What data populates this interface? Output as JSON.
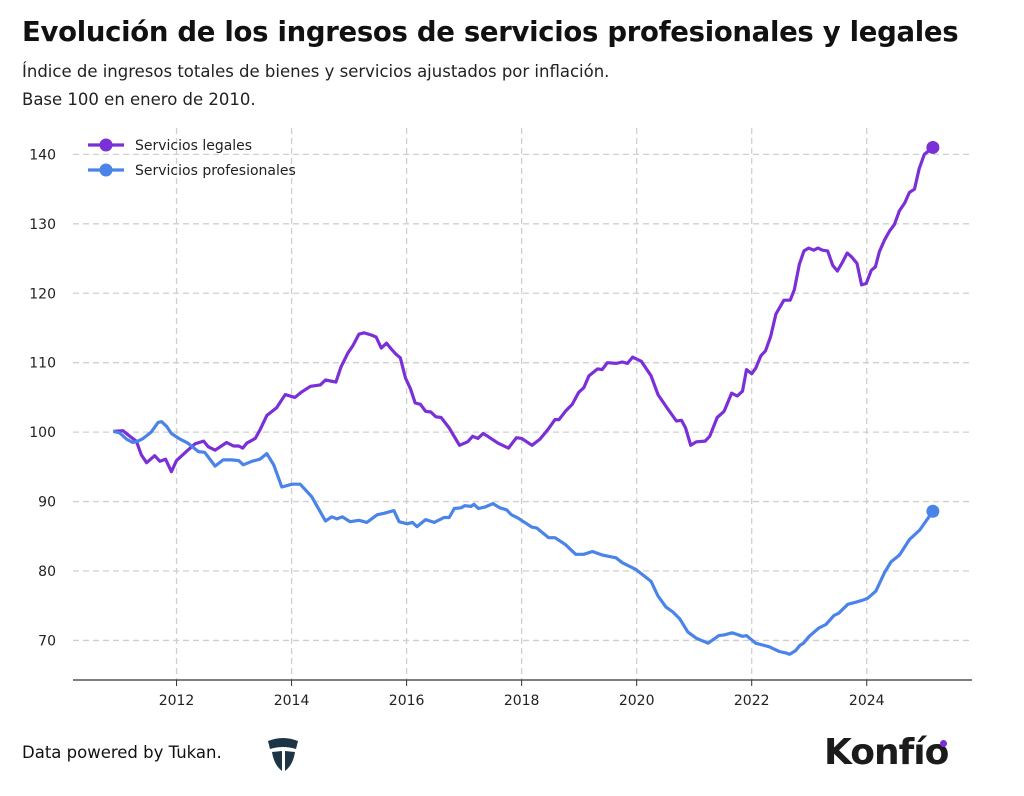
{
  "header": {
    "title": "Evolución de los ingresos de servicios profesionales y legales",
    "subtitle_line1": "Índice de ingresos totales de bienes y servicios ajustados por inflación.",
    "subtitle_line2": "Base 100 en enero de 2010."
  },
  "footer": {
    "credit": "Data powered by Tukan.",
    "tukan_logo": "Tukan",
    "brand_logo": "Konfío",
    "brand_accent": "#7b2fd6"
  },
  "chart_data": {
    "type": "line",
    "title": "Evolución de los ingresos de servicios profesionales y legales",
    "xlabel": "",
    "ylabel": "",
    "xlim": [
      2010.2,
      2025.83
    ],
    "ylim": [
      64.3,
      143.8
    ],
    "x_ticks": [
      2012,
      2014,
      2016,
      2018,
      2020,
      2022,
      2024
    ],
    "y_ticks": [
      70,
      80,
      90,
      100,
      110,
      120,
      130,
      140
    ],
    "grid": true,
    "legend": "top-left",
    "series": [
      {
        "name": "Servicios legales",
        "color": "#7b2fd6",
        "end_marker": true,
        "points": [
          [
            2010.9,
            100.1
          ],
          [
            2011.07,
            100.2
          ],
          [
            2011.19,
            99.4
          ],
          [
            2011.3,
            98.7
          ],
          [
            2011.39,
            96.7
          ],
          [
            2011.48,
            95.6
          ],
          [
            2011.62,
            96.6
          ],
          [
            2011.71,
            95.8
          ],
          [
            2011.81,
            96.1
          ],
          [
            2011.91,
            94.3
          ],
          [
            2012.0,
            95.9
          ],
          [
            2012.17,
            97.2
          ],
          [
            2012.32,
            98.3
          ],
          [
            2012.47,
            98.7
          ],
          [
            2012.55,
            97.9
          ],
          [
            2012.67,
            97.4
          ],
          [
            2012.87,
            98.5
          ],
          [
            2012.99,
            98.0
          ],
          [
            2013.08,
            98.0
          ],
          [
            2013.15,
            97.7
          ],
          [
            2013.22,
            98.4
          ],
          [
            2013.37,
            99.1
          ],
          [
            2013.45,
            100.3
          ],
          [
            2013.57,
            102.4
          ],
          [
            2013.74,
            103.5
          ],
          [
            2013.89,
            105.4
          ],
          [
            2014.06,
            105.0
          ],
          [
            2014.18,
            105.8
          ],
          [
            2014.33,
            106.6
          ],
          [
            2014.5,
            106.8
          ],
          [
            2014.59,
            107.5
          ],
          [
            2014.77,
            107.2
          ],
          [
            2014.86,
            109.4
          ],
          [
            2014.98,
            111.4
          ],
          [
            2015.07,
            112.5
          ],
          [
            2015.17,
            114.1
          ],
          [
            2015.26,
            114.3
          ],
          [
            2015.38,
            114.0
          ],
          [
            2015.47,
            113.7
          ],
          [
            2015.56,
            112.1
          ],
          [
            2015.65,
            112.8
          ],
          [
            2015.73,
            112.0
          ],
          [
            2015.82,
            111.2
          ],
          [
            2015.89,
            110.7
          ],
          [
            2015.98,
            107.8
          ],
          [
            2016.07,
            106.2
          ],
          [
            2016.15,
            104.2
          ],
          [
            2016.24,
            104.0
          ],
          [
            2016.33,
            103.0
          ],
          [
            2016.42,
            102.9
          ],
          [
            2016.51,
            102.2
          ],
          [
            2016.6,
            102.1
          ],
          [
            2016.74,
            100.6
          ],
          [
            2016.92,
            98.1
          ],
          [
            2017.06,
            98.6
          ],
          [
            2017.15,
            99.4
          ],
          [
            2017.24,
            99.1
          ],
          [
            2017.33,
            99.8
          ],
          [
            2017.41,
            99.4
          ],
          [
            2017.59,
            98.4
          ],
          [
            2017.77,
            97.7
          ],
          [
            2017.91,
            99.2
          ],
          [
            2018.0,
            99.1
          ],
          [
            2018.18,
            98.1
          ],
          [
            2018.32,
            99.0
          ],
          [
            2018.46,
            100.4
          ],
          [
            2018.58,
            101.8
          ],
          [
            2018.65,
            101.8
          ],
          [
            2018.76,
            103.0
          ],
          [
            2018.88,
            104.0
          ],
          [
            2018.99,
            105.7
          ],
          [
            2019.08,
            106.4
          ],
          [
            2019.17,
            108.1
          ],
          [
            2019.32,
            109.1
          ],
          [
            2019.4,
            109.0
          ],
          [
            2019.49,
            110.0
          ],
          [
            2019.64,
            109.9
          ],
          [
            2019.75,
            110.1
          ],
          [
            2019.84,
            109.9
          ],
          [
            2019.93,
            110.8
          ],
          [
            2020.08,
            110.2
          ],
          [
            2020.25,
            108.1
          ],
          [
            2020.37,
            105.4
          ],
          [
            2020.51,
            103.7
          ],
          [
            2020.69,
            101.6
          ],
          [
            2020.78,
            101.7
          ],
          [
            2020.85,
            100.6
          ],
          [
            2020.94,
            98.1
          ],
          [
            2021.04,
            98.6
          ],
          [
            2021.19,
            98.7
          ],
          [
            2021.27,
            99.4
          ],
          [
            2021.4,
            102.1
          ],
          [
            2021.52,
            103.0
          ],
          [
            2021.65,
            105.6
          ],
          [
            2021.75,
            105.2
          ],
          [
            2021.84,
            105.9
          ],
          [
            2021.91,
            109.0
          ],
          [
            2022.0,
            108.4
          ],
          [
            2022.07,
            109.2
          ],
          [
            2022.16,
            111.0
          ],
          [
            2022.24,
            111.7
          ],
          [
            2022.33,
            113.8
          ],
          [
            2022.42,
            117.0
          ],
          [
            2022.56,
            119.0
          ],
          [
            2022.67,
            119.0
          ],
          [
            2022.74,
            120.5
          ],
          [
            2022.83,
            124.2
          ],
          [
            2022.91,
            126.1
          ],
          [
            2022.99,
            126.5
          ],
          [
            2023.08,
            126.2
          ],
          [
            2023.15,
            126.5
          ],
          [
            2023.23,
            126.2
          ],
          [
            2023.32,
            126.1
          ],
          [
            2023.41,
            124.0
          ],
          [
            2023.49,
            123.2
          ],
          [
            2023.58,
            124.5
          ],
          [
            2023.66,
            125.8
          ],
          [
            2023.74,
            125.2
          ],
          [
            2023.83,
            124.3
          ],
          [
            2023.91,
            121.2
          ],
          [
            2023.99,
            121.4
          ],
          [
            2024.08,
            123.3
          ],
          [
            2024.15,
            123.8
          ],
          [
            2024.22,
            126.0
          ],
          [
            2024.31,
            127.7
          ],
          [
            2024.4,
            129.0
          ],
          [
            2024.48,
            129.9
          ],
          [
            2024.57,
            131.9
          ],
          [
            2024.66,
            133.0
          ],
          [
            2024.74,
            134.5
          ],
          [
            2024.83,
            135.0
          ],
          [
            2024.91,
            137.9
          ],
          [
            2025.0,
            140.0
          ],
          [
            2025.15,
            141.0
          ]
        ]
      },
      {
        "name": "Servicios profesionales",
        "color": "#4a84e8",
        "end_marker": true,
        "points": [
          [
            2010.9,
            100.1
          ],
          [
            2011.01,
            99.9
          ],
          [
            2011.13,
            99.0
          ],
          [
            2011.24,
            98.5
          ],
          [
            2011.33,
            98.7
          ],
          [
            2011.42,
            99.1
          ],
          [
            2011.56,
            100.0
          ],
          [
            2011.68,
            101.4
          ],
          [
            2011.74,
            101.5
          ],
          [
            2011.83,
            100.8
          ],
          [
            2011.91,
            99.8
          ],
          [
            2012.06,
            99.0
          ],
          [
            2012.2,
            98.4
          ],
          [
            2012.38,
            97.2
          ],
          [
            2012.49,
            97.1
          ],
          [
            2012.67,
            95.1
          ],
          [
            2012.81,
            96.0
          ],
          [
            2012.96,
            96.0
          ],
          [
            2013.08,
            95.9
          ],
          [
            2013.16,
            95.3
          ],
          [
            2013.31,
            95.8
          ],
          [
            2013.45,
            96.1
          ],
          [
            2013.57,
            96.9
          ],
          [
            2013.69,
            95.3
          ],
          [
            2013.83,
            92.1
          ],
          [
            2014.01,
            92.5
          ],
          [
            2014.15,
            92.5
          ],
          [
            2014.35,
            90.7
          ],
          [
            2014.59,
            87.2
          ],
          [
            2014.7,
            87.8
          ],
          [
            2014.79,
            87.5
          ],
          [
            2014.88,
            87.8
          ],
          [
            2015.02,
            87.1
          ],
          [
            2015.17,
            87.3
          ],
          [
            2015.31,
            87.0
          ],
          [
            2015.49,
            88.1
          ],
          [
            2015.6,
            88.3
          ],
          [
            2015.78,
            88.7
          ],
          [
            2015.87,
            87.1
          ],
          [
            2016.01,
            86.8
          ],
          [
            2016.1,
            87.0
          ],
          [
            2016.18,
            86.4
          ],
          [
            2016.33,
            87.4
          ],
          [
            2016.48,
            87.0
          ],
          [
            2016.65,
            87.7
          ],
          [
            2016.74,
            87.7
          ],
          [
            2016.83,
            89.0
          ],
          [
            2016.95,
            89.1
          ],
          [
            2017.01,
            89.4
          ],
          [
            2017.12,
            89.3
          ],
          [
            2017.17,
            89.6
          ],
          [
            2017.25,
            89.0
          ],
          [
            2017.36,
            89.2
          ],
          [
            2017.5,
            89.7
          ],
          [
            2017.62,
            89.1
          ],
          [
            2017.74,
            88.8
          ],
          [
            2017.82,
            88.1
          ],
          [
            2017.94,
            87.6
          ],
          [
            2018.18,
            86.3
          ],
          [
            2018.26,
            86.2
          ],
          [
            2018.47,
            84.8
          ],
          [
            2018.58,
            84.8
          ],
          [
            2018.76,
            83.8
          ],
          [
            2018.94,
            82.4
          ],
          [
            2019.08,
            82.4
          ],
          [
            2019.23,
            82.8
          ],
          [
            2019.4,
            82.3
          ],
          [
            2019.52,
            82.1
          ],
          [
            2019.64,
            81.9
          ],
          [
            2019.75,
            81.2
          ],
          [
            2019.99,
            80.2
          ],
          [
            2020.25,
            78.5
          ],
          [
            2020.37,
            76.4
          ],
          [
            2020.51,
            74.8
          ],
          [
            2020.63,
            74.1
          ],
          [
            2020.75,
            73.1
          ],
          [
            2020.89,
            71.2
          ],
          [
            2021.04,
            70.3
          ],
          [
            2021.24,
            69.6
          ],
          [
            2021.43,
            70.7
          ],
          [
            2021.52,
            70.8
          ],
          [
            2021.66,
            71.1
          ],
          [
            2021.84,
            70.6
          ],
          [
            2021.91,
            70.7
          ],
          [
            2022.07,
            69.6
          ],
          [
            2022.3,
            69.1
          ],
          [
            2022.48,
            68.4
          ],
          [
            2022.59,
            68.2
          ],
          [
            2022.66,
            68.0
          ],
          [
            2022.76,
            68.5
          ],
          [
            2022.84,
            69.3
          ],
          [
            2022.9,
            69.6
          ],
          [
            2023.0,
            70.6
          ],
          [
            2023.17,
            71.8
          ],
          [
            2023.29,
            72.3
          ],
          [
            2023.43,
            73.6
          ],
          [
            2023.51,
            73.9
          ],
          [
            2023.67,
            75.2
          ],
          [
            2023.81,
            75.5
          ],
          [
            2023.93,
            75.8
          ],
          [
            2024.02,
            76.1
          ],
          [
            2024.16,
            77.1
          ],
          [
            2024.31,
            79.8
          ],
          [
            2024.42,
            81.3
          ],
          [
            2024.57,
            82.3
          ],
          [
            2024.74,
            84.5
          ],
          [
            2024.92,
            85.9
          ],
          [
            2025.15,
            88.6
          ]
        ]
      }
    ]
  }
}
